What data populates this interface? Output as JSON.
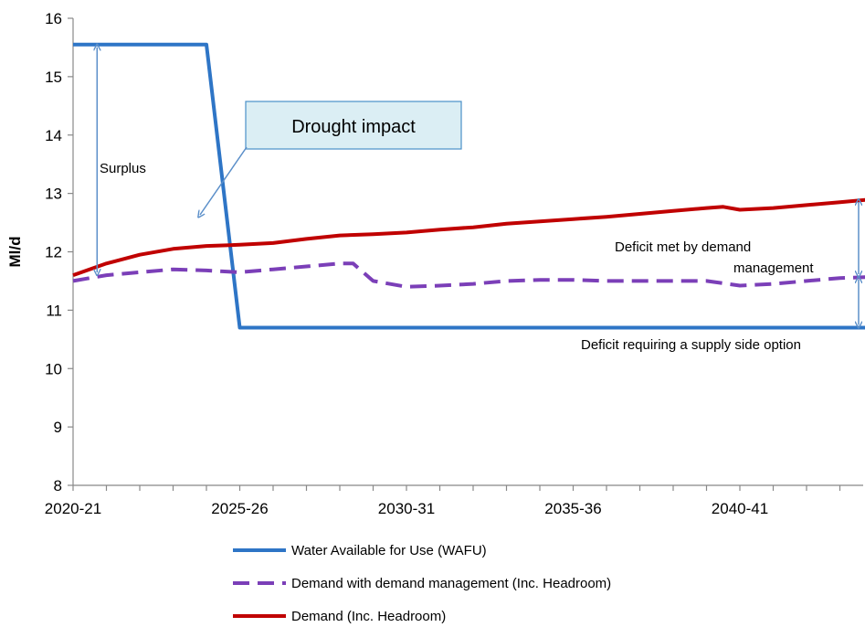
{
  "chart_data": {
    "type": "line",
    "ylabel": "Ml/d",
    "xlabel": "",
    "ylim": [
      8,
      16
    ],
    "yticks": [
      8,
      9,
      10,
      11,
      12,
      13,
      14,
      15,
      16
    ],
    "x_tick_labels": [
      {
        "label": "2020-21",
        "index": 0
      },
      {
        "label": "2025-26",
        "index": 5
      },
      {
        "label": "2030-31",
        "index": 10
      },
      {
        "label": "2035-36",
        "index": 15
      },
      {
        "label": "2040-41",
        "index": 20
      }
    ],
    "x_count": 25,
    "series": [
      {
        "name": "Water Available for Use (WAFU)",
        "color": "#2e75c6",
        "dash": "solid",
        "points": [
          [
            0,
            15.55
          ],
          [
            3,
            15.55
          ],
          [
            4,
            15.55
          ],
          [
            5,
            10.7
          ],
          [
            6,
            10.7
          ],
          [
            10,
            10.7
          ],
          [
            15,
            10.7
          ],
          [
            20,
            10.7
          ],
          [
            24,
            10.7
          ]
        ]
      },
      {
        "name": "Demand with demand management (Inc. Headroom)",
        "color": "#7b3fb8",
        "dash": "dashed",
        "points": [
          [
            0,
            11.5
          ],
          [
            1,
            11.6
          ],
          [
            2,
            11.65
          ],
          [
            3,
            11.7
          ],
          [
            4,
            11.68
          ],
          [
            5,
            11.65
          ],
          [
            6,
            11.7
          ],
          [
            7,
            11.75
          ],
          [
            8,
            11.8
          ],
          [
            8.4,
            11.8
          ],
          [
            9,
            11.5
          ],
          [
            10,
            11.4
          ],
          [
            11,
            11.42
          ],
          [
            12,
            11.45
          ],
          [
            13,
            11.5
          ],
          [
            14,
            11.52
          ],
          [
            15,
            11.52
          ],
          [
            16,
            11.5
          ],
          [
            17,
            11.5
          ],
          [
            18,
            11.5
          ],
          [
            19,
            11.5
          ],
          [
            20,
            11.42
          ],
          [
            21,
            11.45
          ],
          [
            22,
            11.5
          ],
          [
            23,
            11.55
          ],
          [
            24,
            11.57
          ]
        ]
      },
      {
        "name": "Demand (Inc. Headroom)",
        "color": "#c00000",
        "dash": "solid",
        "points": [
          [
            0,
            11.6
          ],
          [
            1,
            11.8
          ],
          [
            2,
            11.95
          ],
          [
            3,
            12.05
          ],
          [
            4,
            12.1
          ],
          [
            5,
            12.12
          ],
          [
            6,
            12.15
          ],
          [
            7,
            12.22
          ],
          [
            8,
            12.28
          ],
          [
            9,
            12.3
          ],
          [
            10,
            12.33
          ],
          [
            11,
            12.38
          ],
          [
            12,
            12.42
          ],
          [
            13,
            12.48
          ],
          [
            14,
            12.52
          ],
          [
            15,
            12.56
          ],
          [
            16,
            12.6
          ],
          [
            17,
            12.65
          ],
          [
            18,
            12.7
          ],
          [
            19,
            12.75
          ],
          [
            19.5,
            12.77
          ],
          [
            20,
            12.72
          ],
          [
            21,
            12.75
          ],
          [
            22,
            12.8
          ],
          [
            23,
            12.85
          ],
          [
            24,
            12.9
          ]
        ]
      }
    ],
    "annotations": {
      "callout": "Drought impact",
      "surplus": "Surplus",
      "deficit_demand_line1": "Deficit met by demand",
      "deficit_demand_line2": "management",
      "deficit_supply": "Deficit  requiring a supply side option"
    },
    "legend_placement": "bottom",
    "grid": false
  }
}
